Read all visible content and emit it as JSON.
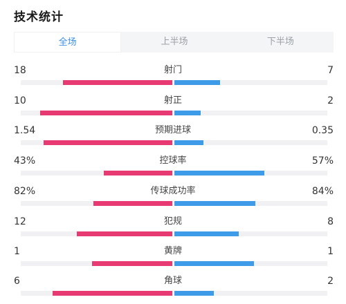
{
  "header": {
    "title": "技术统计"
  },
  "tabs": [
    {
      "label": "全场",
      "active": true
    },
    {
      "label": "上半场",
      "active": false
    },
    {
      "label": "下半场",
      "active": false
    }
  ],
  "colors": {
    "home": "#e73a73",
    "away": "#3e9be7",
    "tab_active": "#3a8ee6"
  },
  "stats": [
    {
      "label": "射门",
      "home": "18",
      "away": "7",
      "home_share": 0.72,
      "away_share": 0.3
    },
    {
      "label": "射正",
      "home": "10",
      "away": "2",
      "home_share": 0.87,
      "away_share": 0.17
    },
    {
      "label": "预期进球",
      "home": "1.54",
      "away": "0.35",
      "home_share": 0.85,
      "away_share": 0.19
    },
    {
      "label": "控球率",
      "home": "43%",
      "away": "57%",
      "home_share": 0.45,
      "away_share": 0.59
    },
    {
      "label": "传球成功率",
      "home": "82%",
      "away": "84%",
      "home_share": 0.52,
      "away_share": 0.53
    },
    {
      "label": "犯规",
      "home": "12",
      "away": "8",
      "home_share": 0.63,
      "away_share": 0.42
    },
    {
      "label": "黄牌",
      "home": "1",
      "away": "1",
      "home_share": 0.53,
      "away_share": 0.52
    },
    {
      "label": "角球",
      "home": "6",
      "away": "2",
      "home_share": 0.79,
      "away_share": 0.26
    }
  ]
}
